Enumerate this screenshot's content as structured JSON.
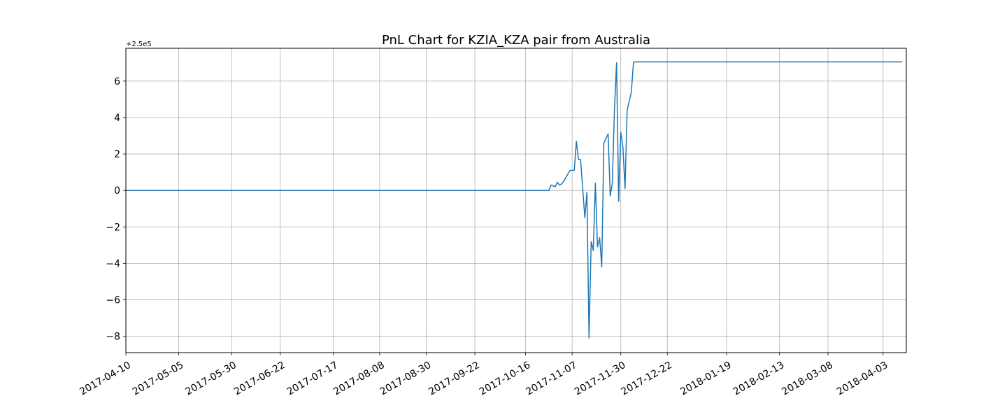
{
  "chart_data": {
    "type": "line",
    "title": "PnL Chart for KZIA_KZA pair from Australia",
    "xlabel": "",
    "ylabel": "",
    "y_offset_label": "+2.5e5",
    "y_offset": 250000,
    "xlim": [
      "2017-04-10",
      "2018-04-14"
    ],
    "ylim": [
      -8.9,
      7.8
    ],
    "grid": true,
    "x_ticks": [
      "2017-04-10",
      "2017-05-05",
      "2017-05-30",
      "2017-06-22",
      "2017-07-17",
      "2017-08-08",
      "2017-08-30",
      "2017-09-22",
      "2017-10-16",
      "2017-11-07",
      "2017-11-30",
      "2017-12-22",
      "2018-01-19",
      "2018-02-13",
      "2018-03-08",
      "2018-04-03"
    ],
    "y_ticks": [
      -8,
      -6,
      -4,
      -2,
      0,
      2,
      4,
      6
    ],
    "line_color": "#1f77b4",
    "series": [
      {
        "x": [
          "2017-04-10",
          "2017-10-27",
          "2017-10-28",
          "2017-10-30",
          "2017-10-31",
          "2017-11-01",
          "2017-11-02",
          "2017-11-03",
          "2017-11-04",
          "2017-11-06",
          "2017-11-08",
          "2017-11-09",
          "2017-11-10",
          "2017-11-11",
          "2017-11-13",
          "2017-11-14",
          "2017-11-15",
          "2017-11-16",
          "2017-11-17",
          "2017-11-18",
          "2017-11-19",
          "2017-11-20",
          "2017-11-21",
          "2017-11-22",
          "2017-11-24",
          "2017-11-25",
          "2017-11-26",
          "2017-11-27",
          "2017-11-28",
          "2017-11-29",
          "2017-11-30",
          "2017-12-01",
          "2017-12-02",
          "2017-12-03",
          "2017-12-05",
          "2017-12-06",
          "2017-12-07",
          "2017-12-08",
          "2017-12-09",
          "2017-12-10",
          "2017-12-11",
          "2017-12-12",
          "2017-12-14",
          "2018-04-12"
        ],
        "values": [
          0,
          0,
          0.3,
          0.2,
          0.45,
          0.3,
          0.35,
          0.5,
          0.7,
          1.1,
          1.1,
          2.7,
          1.7,
          1.7,
          -1.5,
          -0.1,
          -8.1,
          -2.8,
          -3.3,
          0.4,
          -3.1,
          -2.6,
          -4.2,
          2.6,
          3.1,
          -0.3,
          0.4,
          4.4,
          7.0,
          -0.6,
          3.2,
          2.4,
          0.1,
          4.4,
          5.4,
          7.05,
          7.05,
          7.05,
          7.05,
          7.05,
          7.05,
          7.05,
          7.05,
          7.05
        ]
      }
    ]
  }
}
